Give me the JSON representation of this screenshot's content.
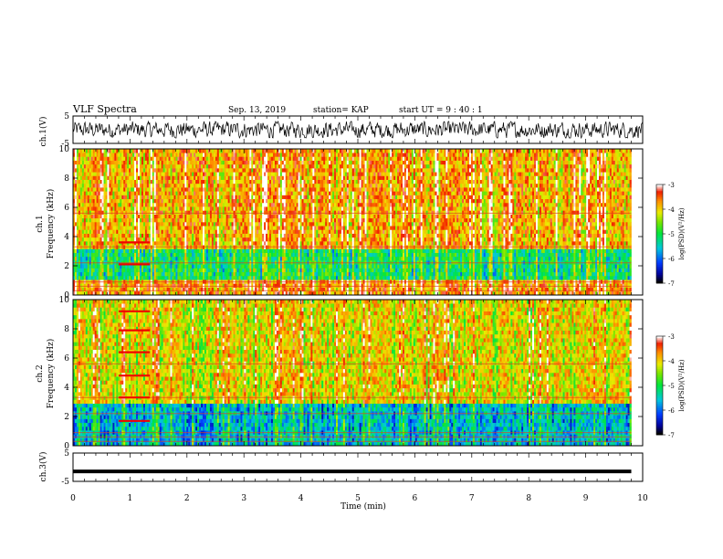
{
  "header": {
    "title": "VLF Spectra",
    "date": "Sep. 13, 2019",
    "station": "station= KAP",
    "start": "start  UT =  9 : 40 : 1"
  },
  "chart_data": [
    {
      "type": "line",
      "panel": "ch1-waveform",
      "ylabel": "ch.1(V)",
      "ylim": [
        -5,
        5
      ],
      "yticks": [
        "5",
        "-5"
      ],
      "xlim": [
        0,
        10
      ],
      "description_of_series": "noisy voltage trace fluctuating roughly between -3 and 3 V",
      "series": [
        {
          "values_range": [
            -3,
            3
          ]
        }
      ]
    },
    {
      "type": "heatmap",
      "panel": "ch1-spectrogram",
      "ylabel": "ch.1\nFrequency (kHz)",
      "ylim": [
        0,
        10
      ],
      "yticks": [
        "0",
        "2",
        "4",
        "6",
        "8",
        "10"
      ],
      "xlim": [
        0,
        10.0
      ],
      "data_end_min": 9.8,
      "colorbar": {
        "label": "log(PSD)(V²/Hz)",
        "range": [
          -7,
          -3
        ],
        "ticks": [
          "-3",
          "-4",
          "-5",
          "-6",
          "-7"
        ]
      },
      "bands_khz": [
        {
          "from": 0,
          "to": 1.0,
          "level": -3.6
        },
        {
          "from": 1.0,
          "to": 3.2,
          "level": -5.0
        },
        {
          "from": 3.2,
          "to": 10,
          "level": -3.7
        }
      ]
    },
    {
      "type": "heatmap",
      "panel": "ch2-spectrogram",
      "ylabel": "ch.2\nFrequency (kHz)",
      "ylim": [
        0,
        10
      ],
      "yticks": [
        "0",
        "2",
        "4",
        "6",
        "8",
        "10"
      ],
      "xlim": [
        0,
        10.0
      ],
      "data_end_min": 9.8,
      "colorbar": {
        "label": "log(PSD)(V²/Hz)",
        "range": [
          -7,
          -3
        ],
        "ticks": [
          "-3",
          "-4",
          "-5",
          "-6",
          "-7"
        ]
      },
      "bands_khz": [
        {
          "from": 0,
          "to": 3.0,
          "level": -5.5
        },
        {
          "from": 3.0,
          "to": 10,
          "level": -4.0
        }
      ]
    },
    {
      "type": "line",
      "panel": "ch3-waveform",
      "ylabel": "ch.3(V)",
      "ylim": [
        -5,
        5
      ],
      "yticks": [
        "5",
        "-5"
      ],
      "xlabel": "Time (min)",
      "xlim": [
        0,
        10
      ],
      "xticks": [
        "0",
        "1",
        "2",
        "3",
        "4",
        "5",
        "6",
        "7",
        "8",
        "9",
        "10"
      ],
      "series": [
        {
          "constant_value": -1.5
        }
      ]
    }
  ]
}
